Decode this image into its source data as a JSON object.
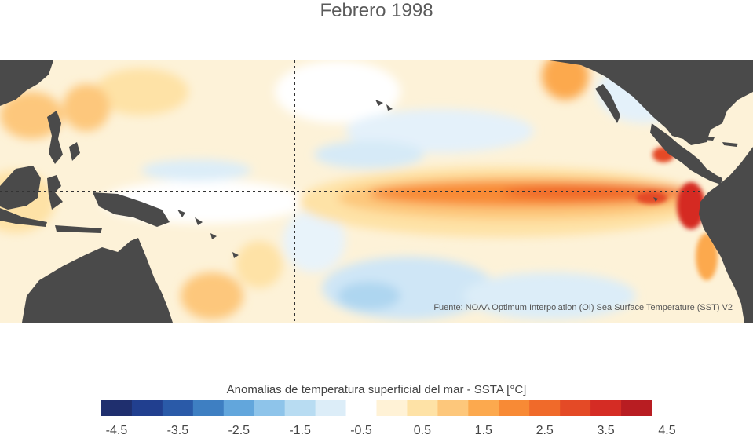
{
  "title": "Febrero 1998",
  "source": "Fuente: NOAA Optimum Interpolation (OI) Sea Surface Temperature (SST) V2",
  "colorbar": {
    "title": "Anomalias de temperatura superficial del mar - SSTA  [°C]",
    "ticks": [
      "-4.5",
      "-3.5",
      "-2.5",
      "-1.5",
      "-0.5",
      "0.5",
      "1.5",
      "2.5",
      "3.5",
      "4.5"
    ],
    "colors": [
      "#1f2f6e",
      "#213f8f",
      "#2a5aa8",
      "#3e7fc2",
      "#62a6dc",
      "#8ec4ea",
      "#b8dcf2",
      "#dcedf8",
      "#ffffff",
      "#fff2d6",
      "#fee2a6",
      "#fdc77b",
      "#fca94e",
      "#f88a35",
      "#f06a2a",
      "#e44a26",
      "#d52c24",
      "#b81d22"
    ]
  },
  "palette": {
    "land": "#4a4a4a",
    "background_ocean": "#fdf2d8",
    "gridline": "#333333"
  }
}
